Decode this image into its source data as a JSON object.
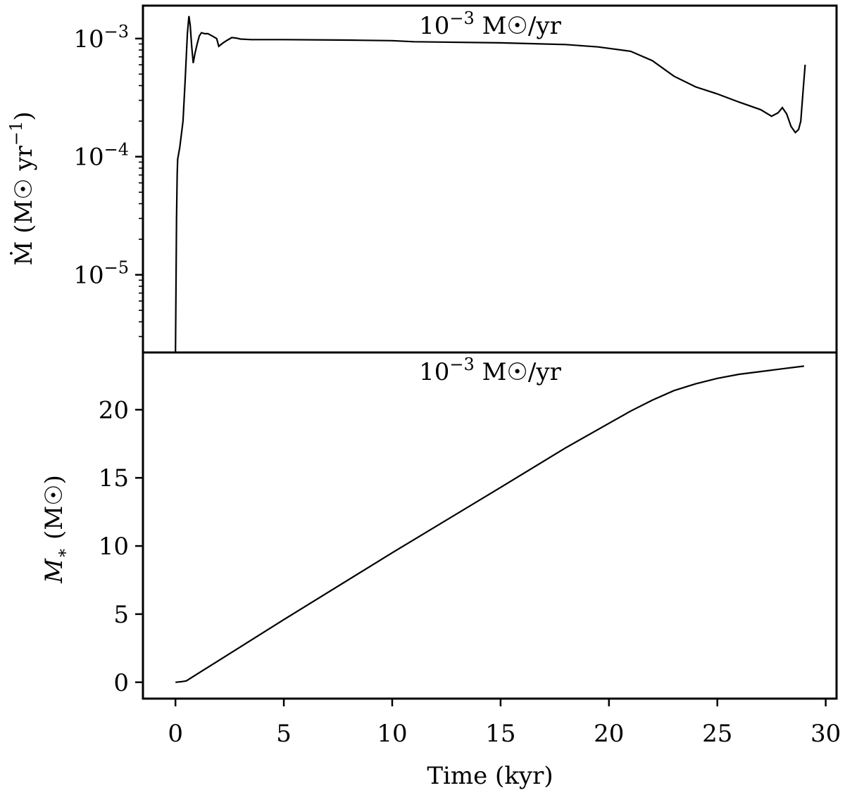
{
  "chart_data": [
    {
      "type": "line",
      "panel": "top",
      "title": "10⁻³ M☉/yr",
      "title_base": "10",
      "title_exp": "−3",
      "title_unit": " M☉/yr",
      "xlabel": "",
      "ylabel": "Ṁ (M☉ yr⁻¹)",
      "ylabel_main": "Ṁ (M☉ yr",
      "ylabel_exp": "−1",
      "ylabel_close": ")",
      "yscale": "log",
      "xlim": [
        -1.5,
        30.5
      ],
      "ylim": [
        2.2e-06,
        0.0019
      ],
      "yticks": [
        {
          "value": 1e-05,
          "base": "10",
          "exp": "−5"
        },
        {
          "value": 0.0001,
          "base": "10",
          "exp": "−4"
        },
        {
          "value": 0.001,
          "base": "10",
          "exp": "−3"
        }
      ],
      "x": [
        0.0,
        0.05,
        0.08,
        0.1,
        0.2,
        0.35,
        0.45,
        0.55,
        0.62,
        0.68,
        0.75,
        0.82,
        0.9,
        1.0,
        1.1,
        1.2,
        1.35,
        1.5,
        1.7,
        1.9,
        2.0,
        2.2,
        2.4,
        2.6,
        2.8,
        3.0,
        3.5,
        5.0,
        8.0,
        10.0,
        11.0,
        15.0,
        18.0,
        19.5,
        21.0,
        22.0,
        23.0,
        24.0,
        25.0,
        26.0,
        27.0,
        27.5,
        27.8,
        28.0,
        28.2,
        28.4,
        28.6,
        28.75,
        28.85,
        28.95,
        29.05
      ],
      "y": [
        2.2e-06,
        3e-05,
        7e-05,
        9.5e-05,
        0.00012,
        0.0002,
        0.00045,
        0.0011,
        0.00155,
        0.0013,
        0.00085,
        0.00062,
        0.00075,
        0.0009,
        0.00105,
        0.00112,
        0.0011,
        0.0011,
        0.00105,
        0.001,
        0.00086,
        0.00092,
        0.00097,
        0.00102,
        0.00101,
        0.00099,
        0.00098,
        0.00098,
        0.00097,
        0.00096,
        0.00094,
        0.00092,
        0.00089,
        0.00085,
        0.00078,
        0.00065,
        0.00048,
        0.00039,
        0.00034,
        0.00029,
        0.00025,
        0.00022,
        0.000235,
        0.00026,
        0.00023,
        0.00018,
        0.00016,
        0.00017,
        0.0002,
        0.00035,
        0.0006
      ]
    },
    {
      "type": "line",
      "panel": "bottom",
      "title": "10⁻³ M☉/yr",
      "title_base": "10",
      "title_exp": "−3",
      "title_unit": " M☉/yr",
      "xlabel": "Time (kyr)",
      "ylabel_main": "M",
      "ylabel_sub": "∗",
      "ylabel_rest": " (M☉)",
      "yscale": "linear",
      "xlim": [
        -1.5,
        30.5
      ],
      "ylim": [
        -1.2,
        24.2
      ],
      "xticks": [
        0,
        5,
        10,
        15,
        20,
        25,
        30
      ],
      "yticks": [
        0,
        5,
        10,
        15,
        20
      ],
      "x": [
        0.0,
        0.3,
        0.5,
        0.7,
        1.0,
        1.5,
        2.0,
        3.0,
        5.0,
        10.0,
        15.0,
        18.0,
        20.0,
        21.0,
        22.0,
        23.0,
        24.0,
        25.0,
        26.0,
        27.0,
        28.0,
        29.0
      ],
      "y": [
        0.0,
        0.05,
        0.1,
        0.3,
        0.6,
        1.1,
        1.6,
        2.6,
        4.6,
        9.5,
        14.3,
        17.2,
        19.0,
        19.9,
        20.7,
        21.4,
        21.9,
        22.3,
        22.6,
        22.8,
        23.0,
        23.2
      ]
    }
  ]
}
